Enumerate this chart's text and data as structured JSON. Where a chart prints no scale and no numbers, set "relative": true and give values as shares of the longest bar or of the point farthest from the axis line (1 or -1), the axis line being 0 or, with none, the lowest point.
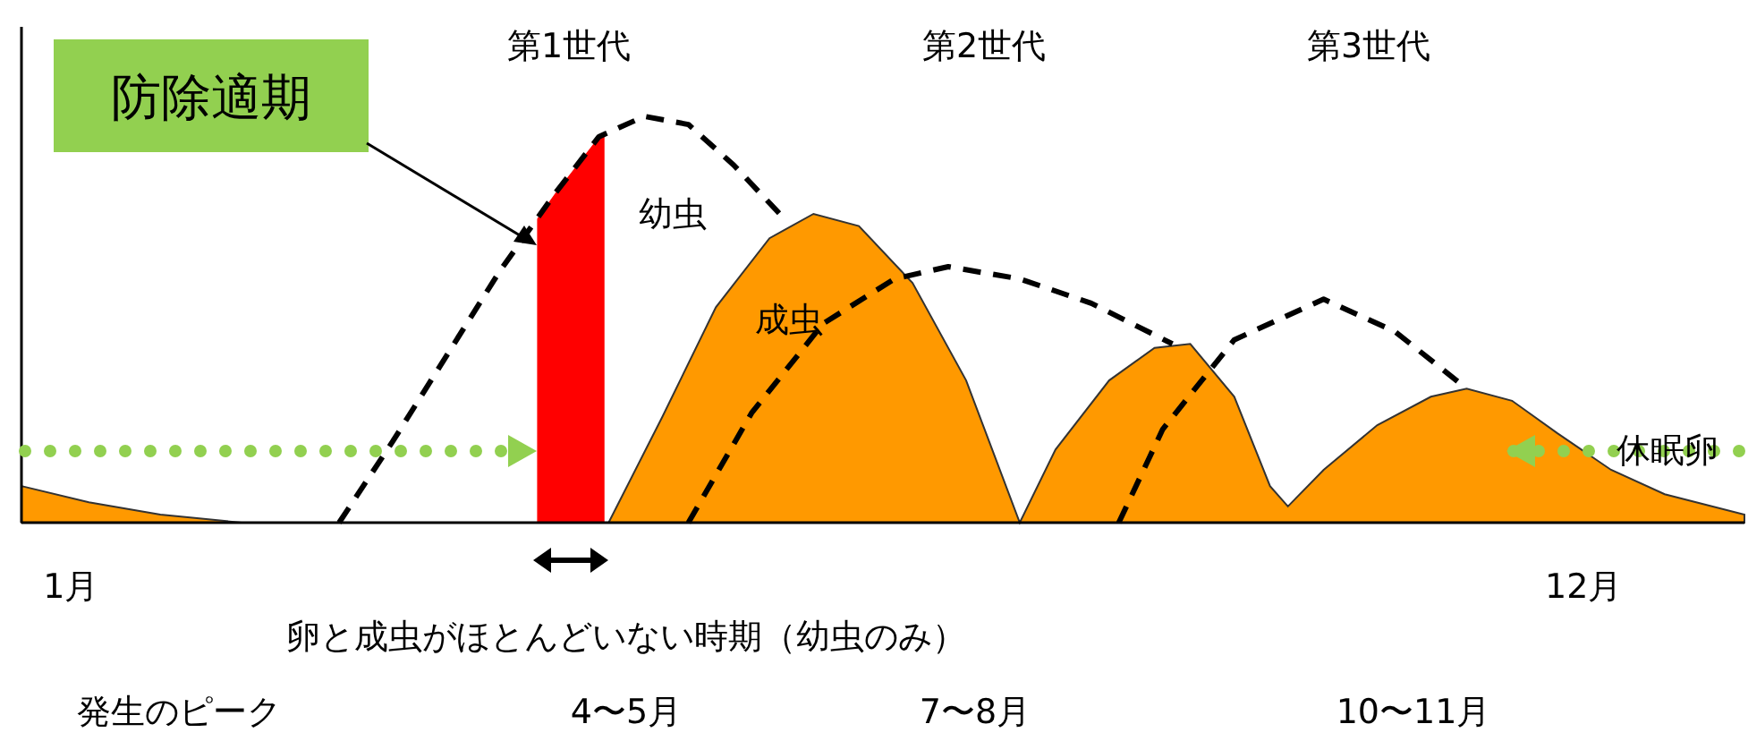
{
  "chart_data": {
    "type": "area",
    "relative": true,
    "legend": false,
    "xlim": [
      0.64,
      13.17
    ],
    "xticks": [
      {
        "value": 1,
        "label": "1月"
      },
      {
        "value": 12,
        "label": "12月"
      }
    ],
    "series": [
      {
        "name": "成虫",
        "color": "#ff9900",
        "x": [
          0.64,
          1.13,
          1.65,
          2.24,
          4.91,
          5.3,
          5.69,
          6.08,
          6.4,
          6.73,
          7.12,
          7.51,
          7.9,
          8.16,
          8.55,
          8.88,
          9.14,
          9.46,
          9.72,
          9.85,
          10.11,
          10.5,
          10.89,
          11.15,
          11.48,
          11.81,
          12.2,
          12.59,
          13.17
        ],
        "values": [
          0.09,
          0.05,
          0.02,
          0,
          0,
          0.26,
          0.53,
          0.7,
          0.76,
          0.73,
          0.59,
          0.35,
          0,
          0.18,
          0.35,
          0.43,
          0.44,
          0.31,
          0.09,
          0.04,
          0.13,
          0.24,
          0.31,
          0.33,
          0.3,
          0.22,
          0.13,
          0.07,
          0.02
        ]
      },
      {
        "name": "幼虫",
        "type": "line",
        "line_style": "dashed",
        "color": "#000000",
        "x": [
          2.95,
          3.34,
          3.73,
          4.12,
          4.52,
          4.84,
          5.17,
          5.49,
          5.82,
          6.21
        ],
        "values": [
          0,
          0.2,
          0.41,
          0.62,
          0.81,
          0.95,
          1,
          0.98,
          0.88,
          0.74
        ]
      },
      {
        "type": "line",
        "line_style": "dashed",
        "color": "#000000",
        "x": [
          5.49,
          5.95,
          6.47,
          6.99,
          7.38,
          7.9,
          8.42,
          9.01
        ],
        "values": [
          0,
          0.27,
          0.49,
          0.6,
          0.63,
          0.6,
          0.54,
          0.44
        ]
      },
      {
        "type": "line",
        "line_style": "dashed",
        "color": "#000000",
        "x": [
          8.62,
          8.94,
          9.46,
          10.11,
          10.63,
          11.15
        ],
        "values": [
          0,
          0.23,
          0.45,
          0.55,
          0.47,
          0.33
        ]
      }
    ],
    "bands": [
      {
        "axis": "x",
        "from": 4.39,
        "to": 4.88,
        "color": "#ff0000"
      }
    ],
    "annotations": [
      "第1世代",
      "第2世代",
      "第3世代",
      "防除適期",
      "休眠卵",
      "卵と成虫がほとんどいない時期（幼虫のみ）",
      "発生のピーク",
      "4〜5月",
      "7〜8月",
      "10〜11月"
    ]
  }
}
